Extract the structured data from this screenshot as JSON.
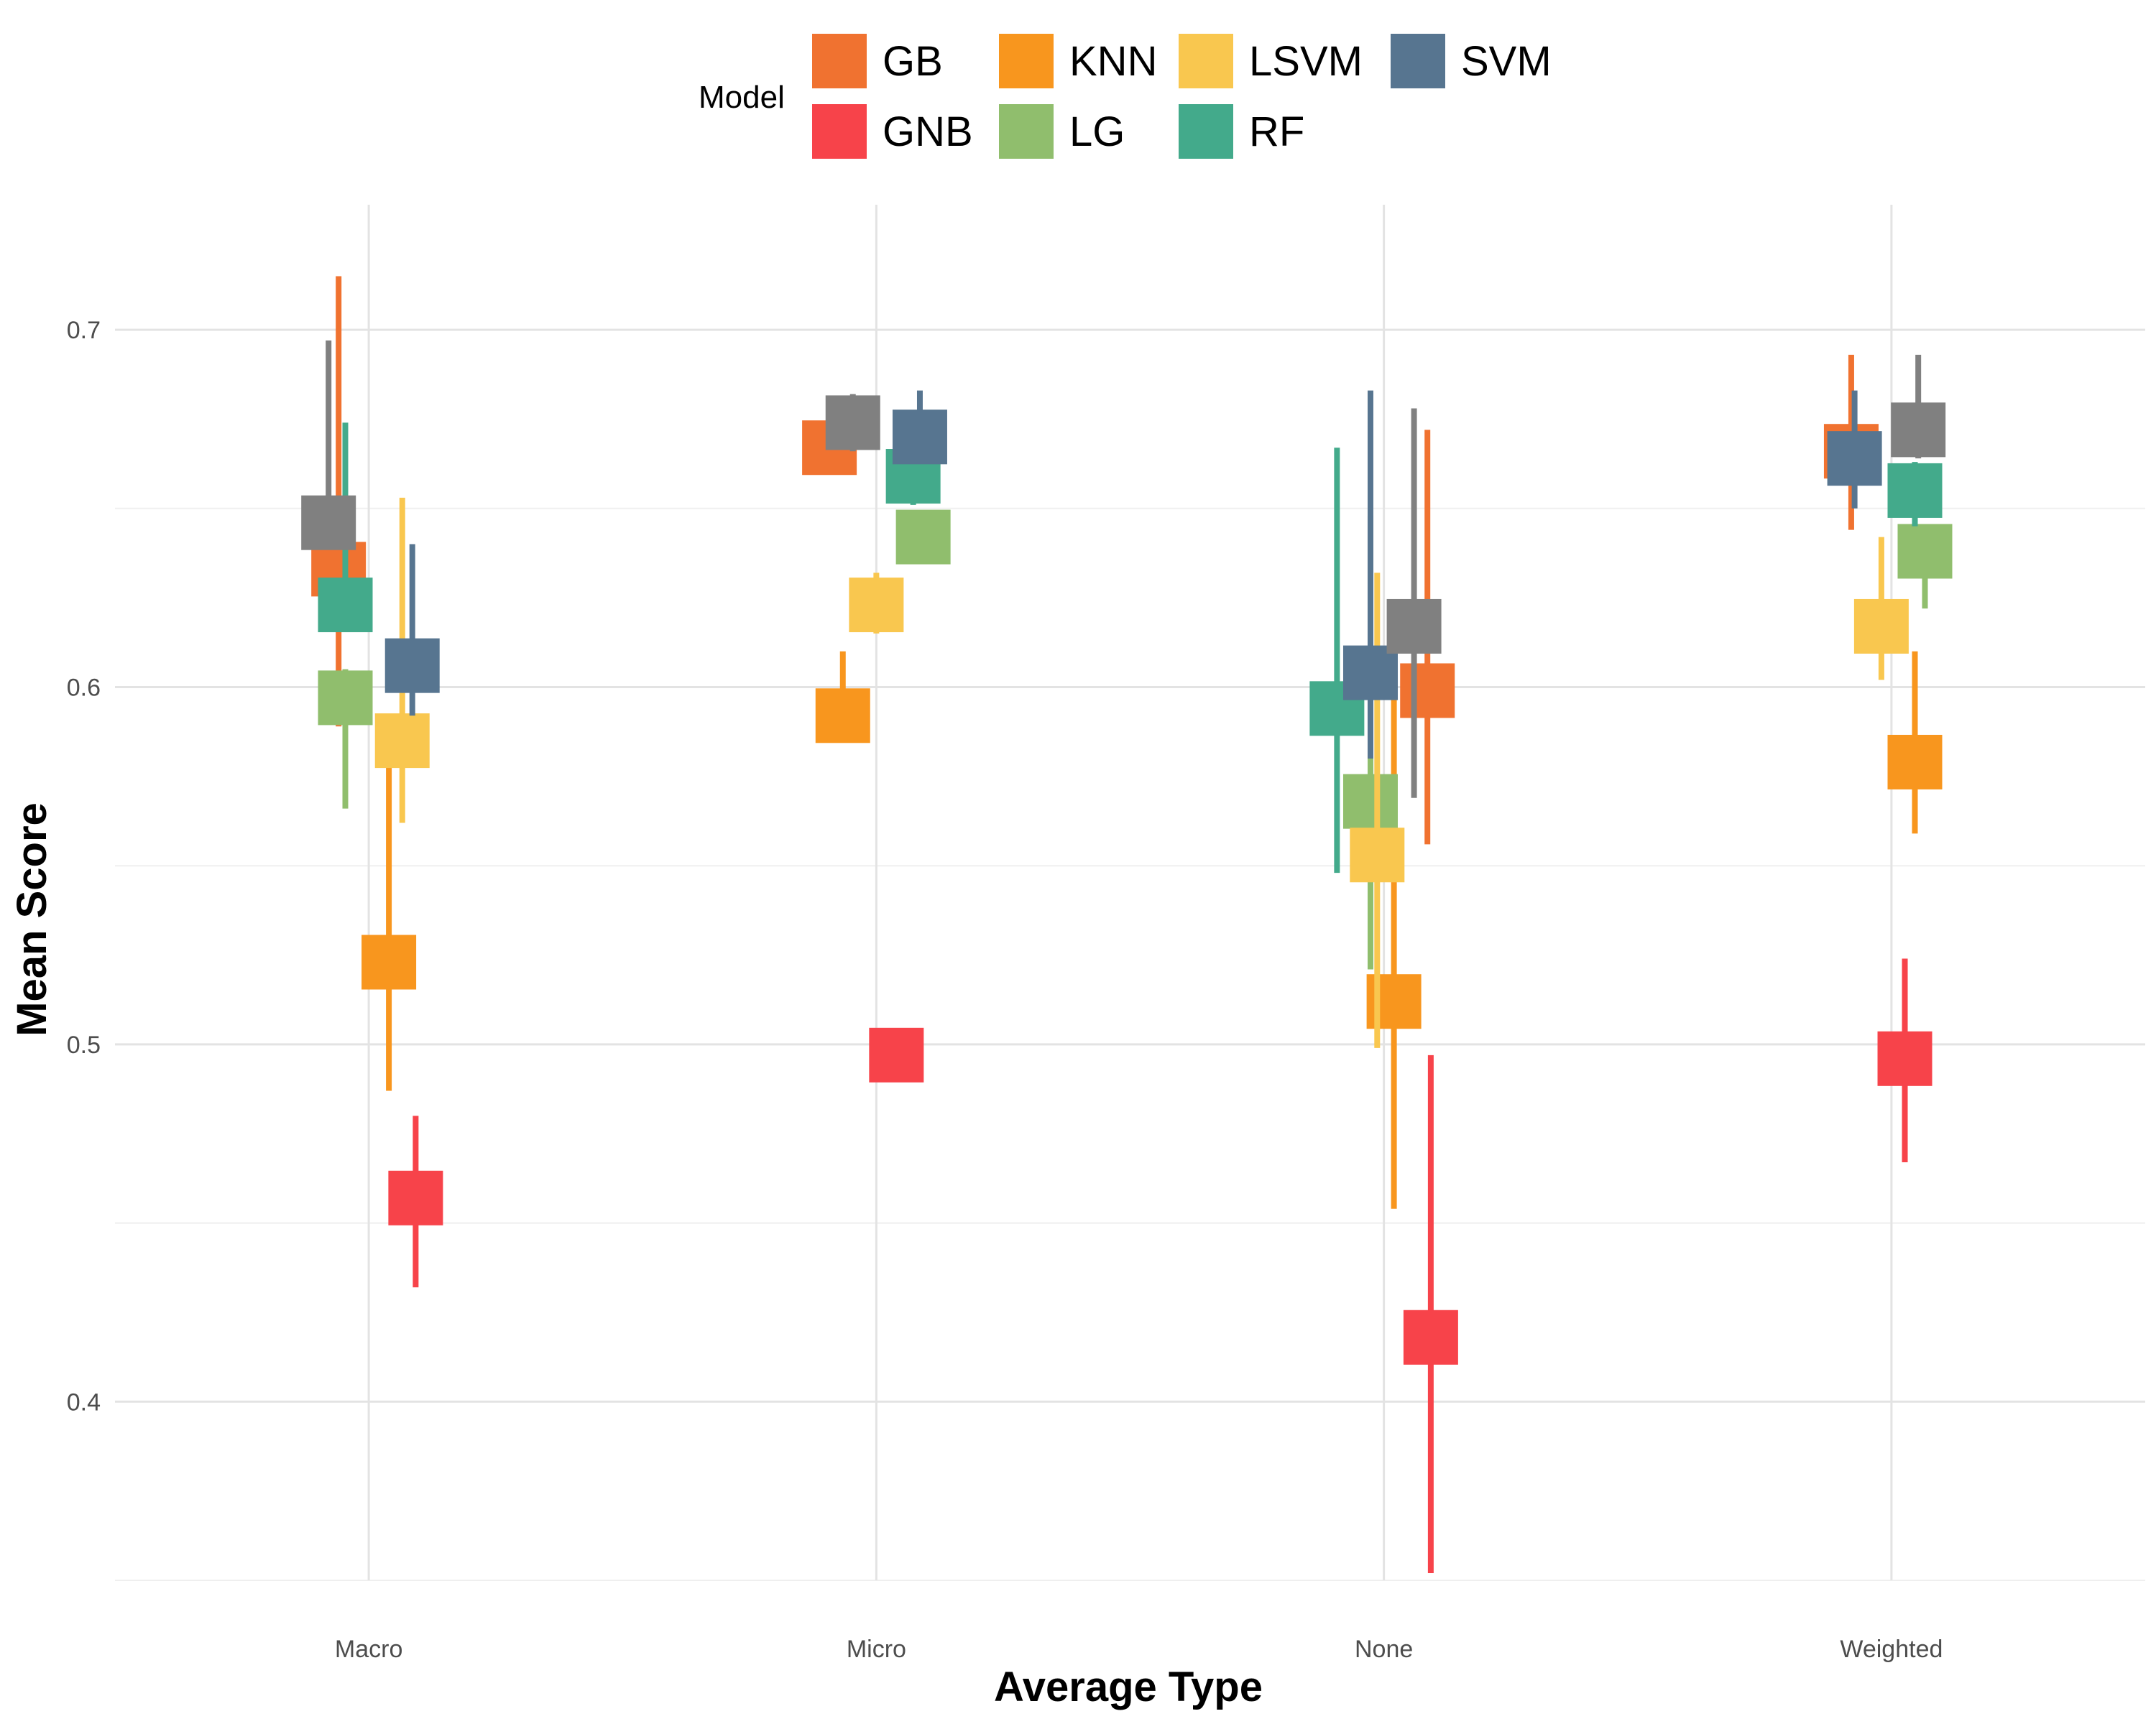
{
  "chart_data": {
    "type": "errorbar",
    "title": "",
    "xlabel": "Average Type",
    "ylabel": "Mean Score",
    "categories": [
      "Macro",
      "Micro",
      "None",
      "Weighted"
    ],
    "ylim": [
      0.35,
      0.735
    ],
    "yticks": [
      0.4,
      0.5,
      0.6,
      0.7
    ],
    "grid": true,
    "legend": {
      "title": "Model",
      "placement": "top"
    },
    "series": [
      {
        "name": "GB",
        "color": "#F07230",
        "points": [
          {
            "category": "Macro",
            "mean": 0.633,
            "lo": 0.589,
            "hi": 0.715
          },
          {
            "category": "Micro",
            "mean": 0.667,
            "lo": 0.667,
            "hi": 0.667
          },
          {
            "category": "None",
            "mean": 0.599,
            "lo": 0.556,
            "hi": 0.672
          },
          {
            "category": "Weighted",
            "mean": 0.666,
            "lo": 0.644,
            "hi": 0.693
          }
        ]
      },
      {
        "name": "GNB",
        "color": "#F7434A",
        "points": [
          {
            "category": "Macro",
            "mean": 0.457,
            "lo": 0.432,
            "hi": 0.48
          },
          {
            "category": "Micro",
            "mean": 0.497,
            "lo": 0.497,
            "hi": 0.497
          },
          {
            "category": "None",
            "mean": 0.418,
            "lo": 0.352,
            "hi": 0.497
          },
          {
            "category": "Weighted",
            "mean": 0.496,
            "lo": 0.467,
            "hi": 0.524
          }
        ]
      },
      {
        "name": "KNN",
        "color": "#F8961E",
        "points": [
          {
            "category": "Macro",
            "mean": 0.523,
            "lo": 0.487,
            "hi": 0.579
          },
          {
            "category": "Micro",
            "mean": 0.592,
            "lo": 0.592,
            "hi": 0.61
          },
          {
            "category": "None",
            "mean": 0.512,
            "lo": 0.454,
            "hi": 0.604
          },
          {
            "category": "Weighted",
            "mean": 0.579,
            "lo": 0.559,
            "hi": 0.61
          }
        ]
      },
      {
        "name": "LG",
        "color": "#90BE6D",
        "points": [
          {
            "category": "Macro",
            "mean": 0.597,
            "lo": 0.566,
            "hi": 0.605
          },
          {
            "category": "Micro",
            "mean": 0.642,
            "lo": 0.635,
            "hi": 0.649
          },
          {
            "category": "None",
            "mean": 0.568,
            "lo": 0.521,
            "hi": 0.648
          },
          {
            "category": "Weighted",
            "mean": 0.638,
            "lo": 0.622,
            "hi": 0.645
          }
        ]
      },
      {
        "name": "LSVM",
        "color": "#F9C74F",
        "points": [
          {
            "category": "Macro",
            "mean": 0.585,
            "lo": 0.562,
            "hi": 0.653
          },
          {
            "category": "Micro",
            "mean": 0.623,
            "lo": 0.615,
            "hi": 0.632
          },
          {
            "category": "None",
            "mean": 0.553,
            "lo": 0.499,
            "hi": 0.632
          },
          {
            "category": "Weighted",
            "mean": 0.617,
            "lo": 0.602,
            "hi": 0.642
          }
        ]
      },
      {
        "name": "RF",
        "color": "#43AA8B",
        "points": [
          {
            "category": "Macro",
            "mean": 0.623,
            "lo": 0.62,
            "hi": 0.674
          },
          {
            "category": "Micro",
            "mean": 0.659,
            "lo": 0.651,
            "hi": 0.666
          },
          {
            "category": "None",
            "mean": 0.594,
            "lo": 0.548,
            "hi": 0.667
          },
          {
            "category": "Weighted",
            "mean": 0.655,
            "lo": 0.645,
            "hi": 0.663
          }
        ]
      },
      {
        "name": "SVM",
        "color": "#577590",
        "points": [
          {
            "category": "Macro",
            "mean": 0.606,
            "lo": 0.592,
            "hi": 0.64
          },
          {
            "category": "Micro",
            "mean": 0.67,
            "lo": 0.663,
            "hi": 0.683
          },
          {
            "category": "None",
            "mean": 0.604,
            "lo": 0.58,
            "hi": 0.683
          },
          {
            "category": "Weighted",
            "mean": 0.664,
            "lo": 0.65,
            "hi": 0.683
          }
        ]
      },
      {
        "name": "",
        "color": "#808080",
        "points": [
          {
            "category": "Macro",
            "mean": 0.646,
            "lo": 0.639,
            "hi": 0.697
          },
          {
            "category": "Micro",
            "mean": 0.674,
            "lo": 0.666,
            "hi": 0.682
          },
          {
            "category": "None",
            "mean": 0.617,
            "lo": 0.569,
            "hi": 0.678
          },
          {
            "category": "Weighted",
            "mean": 0.672,
            "lo": 0.664,
            "hi": 0.693
          }
        ]
      }
    ],
    "mark_offsets": {
      "Macro": {
        "GB": -0.09,
        "GNB": 0.14,
        "KNN": 0.06,
        "LG": -0.07,
        "LSVM": 0.1,
        "RF": -0.07,
        "SVM": 0.13,
        "": -0.12
      },
      "Micro": {
        "GB": -0.14,
        "GNB": 0.06,
        "KNN": -0.1,
        "LG": 0.14,
        "LSVM": 0.0,
        "RF": 0.11,
        "SVM": 0.13,
        "": -0.07
      },
      "None": {
        "GB": 0.13,
        "GNB": 0.14,
        "KNN": 0.03,
        "LG": -0.04,
        "LSVM": -0.02,
        "RF": -0.14,
        "SVM": -0.04,
        "": 0.09
      },
      "Weighted": {
        "GB": -0.12,
        "GNB": 0.04,
        "KNN": 0.07,
        "LG": 0.1,
        "LSVM": -0.03,
        "RF": 0.07,
        "SVM": -0.11,
        "": 0.08
      }
    }
  }
}
